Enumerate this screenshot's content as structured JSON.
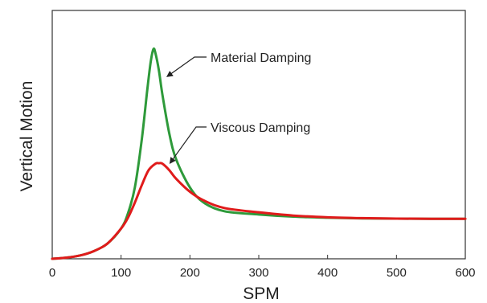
{
  "chart_data": {
    "type": "line",
    "title": "",
    "xlabel": "SPM",
    "ylabel": "Vertical Motion",
    "xlim": [
      0,
      600
    ],
    "ylim": [
      0,
      1
    ],
    "x_ticks": [
      "0",
      "100",
      "200",
      "300",
      "400",
      "500",
      "600"
    ],
    "y_ticks_shown": false,
    "grid": false,
    "legend": "none",
    "series": [
      {
        "name": "Material Damping",
        "color": "#2e9a3a",
        "x": [
          0,
          20,
          40,
          60,
          80,
          100,
          110,
          120,
          130,
          138,
          143,
          147,
          150,
          155,
          160,
          170,
          180,
          200,
          220,
          250,
          300,
          350,
          400,
          450,
          500,
          550,
          600
        ],
        "y": [
          0,
          0.005,
          0.015,
          0.035,
          0.07,
          0.14,
          0.21,
          0.33,
          0.55,
          0.78,
          0.91,
          0.97,
          0.95,
          0.87,
          0.76,
          0.58,
          0.46,
          0.33,
          0.26,
          0.22,
          0.205,
          0.195,
          0.19,
          0.187,
          0.186,
          0.185,
          0.185
        ]
      },
      {
        "name": "Viscous Damping",
        "color": "#e01b1b",
        "x": [
          0,
          20,
          40,
          60,
          80,
          100,
          110,
          120,
          130,
          140,
          150,
          155,
          160,
          170,
          180,
          200,
          220,
          250,
          300,
          350,
          400,
          450,
          500,
          550,
          600
        ],
        "y": [
          0,
          0.005,
          0.015,
          0.035,
          0.07,
          0.14,
          0.19,
          0.26,
          0.34,
          0.41,
          0.44,
          0.442,
          0.44,
          0.41,
          0.37,
          0.31,
          0.27,
          0.235,
          0.215,
          0.2,
          0.192,
          0.188,
          0.186,
          0.185,
          0.185
        ]
      }
    ],
    "annotations": [
      {
        "text": "Material Damping",
        "target_series": 0,
        "target_x": 163,
        "target_y": 0.83
      },
      {
        "text": "Viscous Damping",
        "target_series": 1,
        "target_x": 167,
        "target_y": 0.43
      }
    ]
  }
}
